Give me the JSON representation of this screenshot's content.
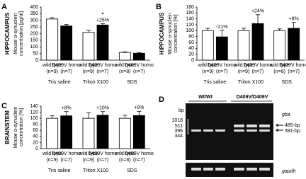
{
  "chart_data": [
    {
      "type": "bar",
      "panel": "A",
      "region": "HIPPOCAMPUS",
      "ylabel": [
        "Mouse α-synuclein",
        "concentration [pg/ul]"
      ],
      "categories": [
        "Tris saline",
        "Triton X100",
        "SDS"
      ],
      "ylim": [
        0,
        400
      ],
      "yticks": [
        0,
        50,
        100,
        150,
        200,
        250,
        300,
        350,
        400
      ],
      "series": [
        {
          "name": "wild type",
          "color": "#ffffff",
          "n_labels": [
            "(n=9)",
            "(n=9)",
            "(n=8)"
          ],
          "values": [
            310,
            210,
            58
          ],
          "errors": [
            10,
            14,
            5
          ],
          "change_labels": [
            null,
            null,
            null
          ],
          "significance": [
            null,
            null,
            null
          ]
        },
        {
          "name": "D409V homo",
          "color": "#000000",
          "n_labels": [
            "(n=7)",
            "(n=7)",
            "(n=7)"
          ],
          "values": [
            258,
            265,
            52
          ],
          "errors": [
            12,
            10,
            5
          ],
          "change_labels": [
            null,
            "+25%",
            null
          ],
          "significance": [
            null,
            "*",
            null
          ]
        }
      ]
    },
    {
      "type": "bar",
      "panel": "B",
      "region": "HIPPOCAMPUS",
      "ylabel": [
        "Mouse α-synuclein",
        "concentration [%]"
      ],
      "categories": [
        "Tris saline",
        "Triton X100",
        "SDS"
      ],
      "ylim": [
        0,
        180
      ],
      "yticks": [
        0,
        20,
        40,
        60,
        80,
        100,
        120,
        140,
        160,
        180
      ],
      "series": [
        {
          "name": "wild type",
          "color": "#ffffff",
          "n_labels": [
            "(n=9)",
            "(n=9)",
            "(n=8)"
          ],
          "values": [
            100,
            100,
            100
          ],
          "errors": [
            8,
            8,
            6
          ],
          "change_labels": [
            null,
            null,
            null
          ]
        },
        {
          "name": "D409V homo",
          "color": "#000000",
          "n_labels": [
            "(n=7)",
            "(n=7)",
            "(n=7)"
          ],
          "values": [
            79,
            124,
            108
          ],
          "errors": [
            22,
            30,
            20
          ],
          "change_labels": [
            "-21%",
            "+24%",
            "+8%"
          ]
        }
      ]
    },
    {
      "type": "bar",
      "panel": "C",
      "region": "BRAINSTEM",
      "ylabel": [
        "Mouse α-synuclein",
        "concentration [%]"
      ],
      "categories": [
        "Tris saline",
        "Triton X100",
        "SDS"
      ],
      "ylim": [
        0,
        140
      ],
      "yticks": [
        0,
        20,
        40,
        60,
        80,
        100,
        120,
        140
      ],
      "series": [
        {
          "name": "wild type",
          "color": "#ffffff",
          "n_labels": [
            "(n=9)",
            "(n=9)",
            "(n=8)"
          ],
          "values": [
            100,
            100,
            100
          ],
          "errors": [
            8,
            18,
            10
          ],
          "change_labels": [
            null,
            null,
            null
          ]
        },
        {
          "name": "D409V homo",
          "color": "#000000",
          "n_labels": [
            "(n=7)",
            "(n=7)",
            "(n=7)"
          ],
          "values": [
            108,
            110,
            109
          ],
          "errors": [
            14,
            12,
            14
          ],
          "change_labels": [
            "+8%",
            "+10%",
            "+9%"
          ]
        }
      ]
    }
  ],
  "gel": {
    "panel": "D",
    "groups": [
      "Wt/Wt",
      "D409V/D409V"
    ],
    "unit": "bp",
    "ladder": [
      "1018",
      "511",
      "396",
      "344"
    ],
    "gene": "gba",
    "bands": [
      "485-bp",
      "391-bp"
    ],
    "control": "gapdh"
  }
}
